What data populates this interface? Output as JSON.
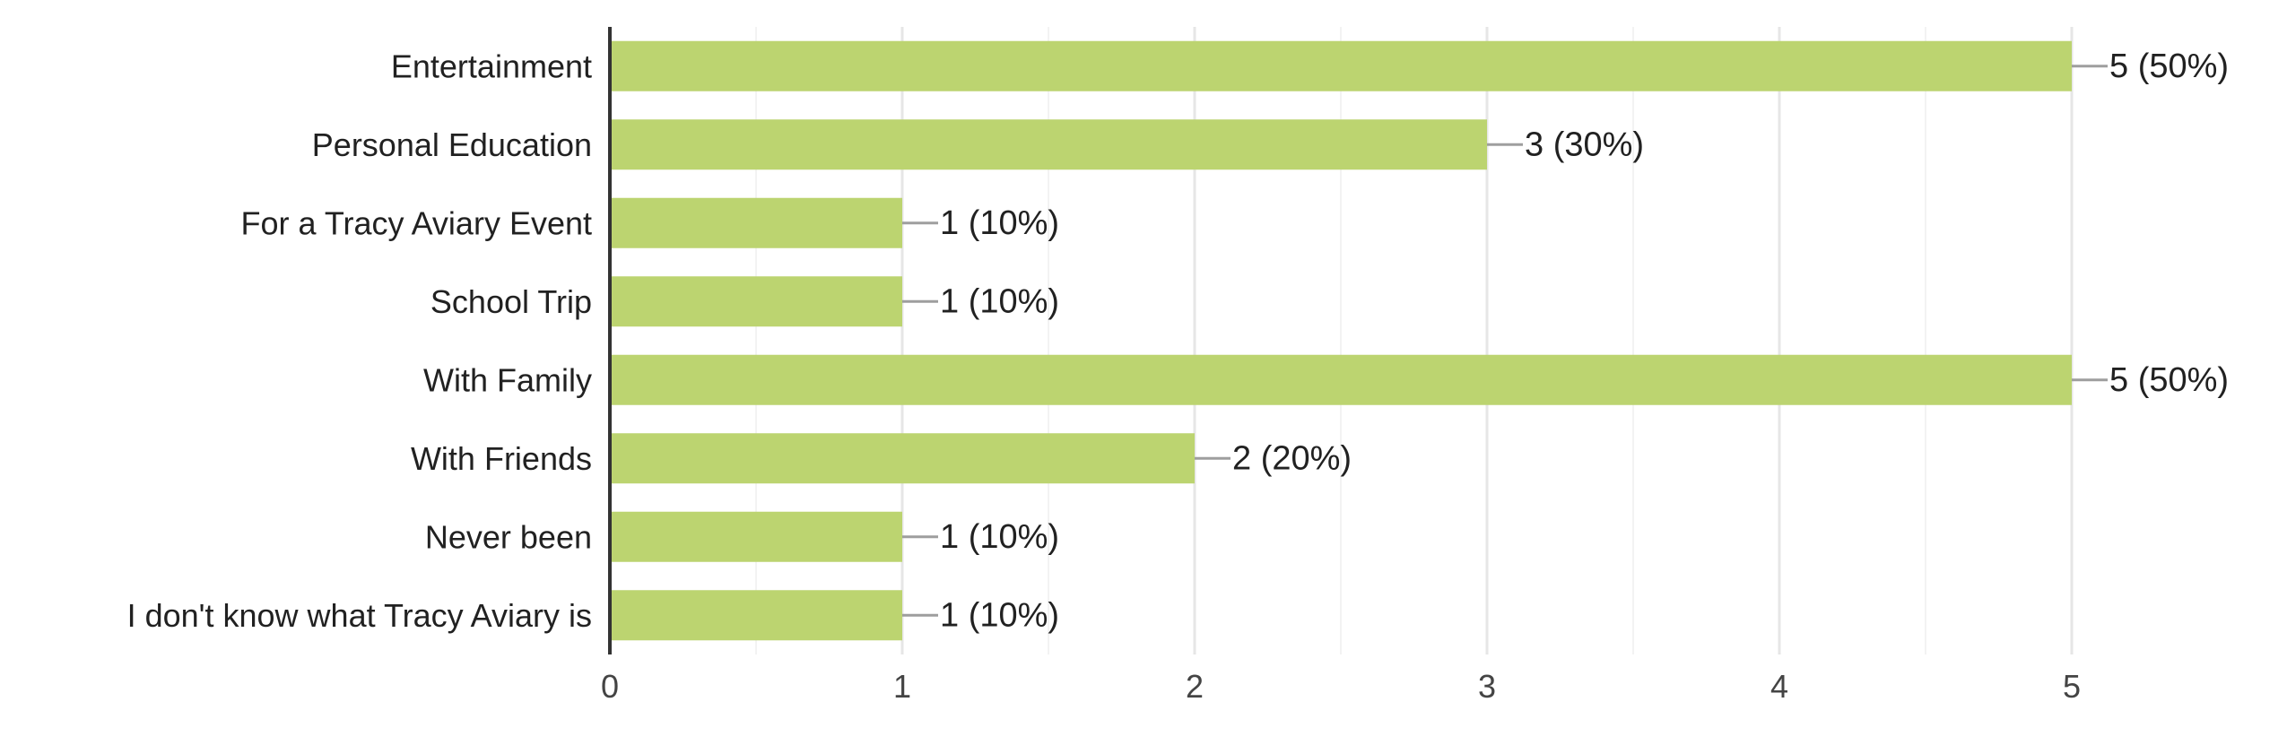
{
  "chart_data": {
    "type": "bar",
    "orientation": "horizontal",
    "categories": [
      "Entertainment",
      "Personal Education",
      "For a Tracy Aviary Event",
      "School Trip",
      "With Family",
      "With Friends",
      "Never been",
      "I don't know what Tracy Aviary is"
    ],
    "values": [
      5,
      3,
      1,
      1,
      5,
      2,
      1,
      1
    ],
    "data_labels": [
      "5 (50%)",
      "3 (30%)",
      "1 (10%)",
      "1 (10%)",
      "5 (50%)",
      "2 (20%)",
      "1 (10%)",
      "1 (10%)"
    ],
    "xlim": [
      0,
      5
    ],
    "xticks": [
      0,
      1,
      2,
      3,
      4,
      5
    ],
    "tick_labels": [
      "0",
      "1",
      "2",
      "3",
      "4",
      "5"
    ],
    "grid": true,
    "title": "",
    "xlabel": "",
    "ylabel": "",
    "colors": {
      "bar": "#bcd470",
      "grid": "#e6e6e6",
      "axis": "#333333",
      "leader": "#9e9e9e"
    }
  }
}
